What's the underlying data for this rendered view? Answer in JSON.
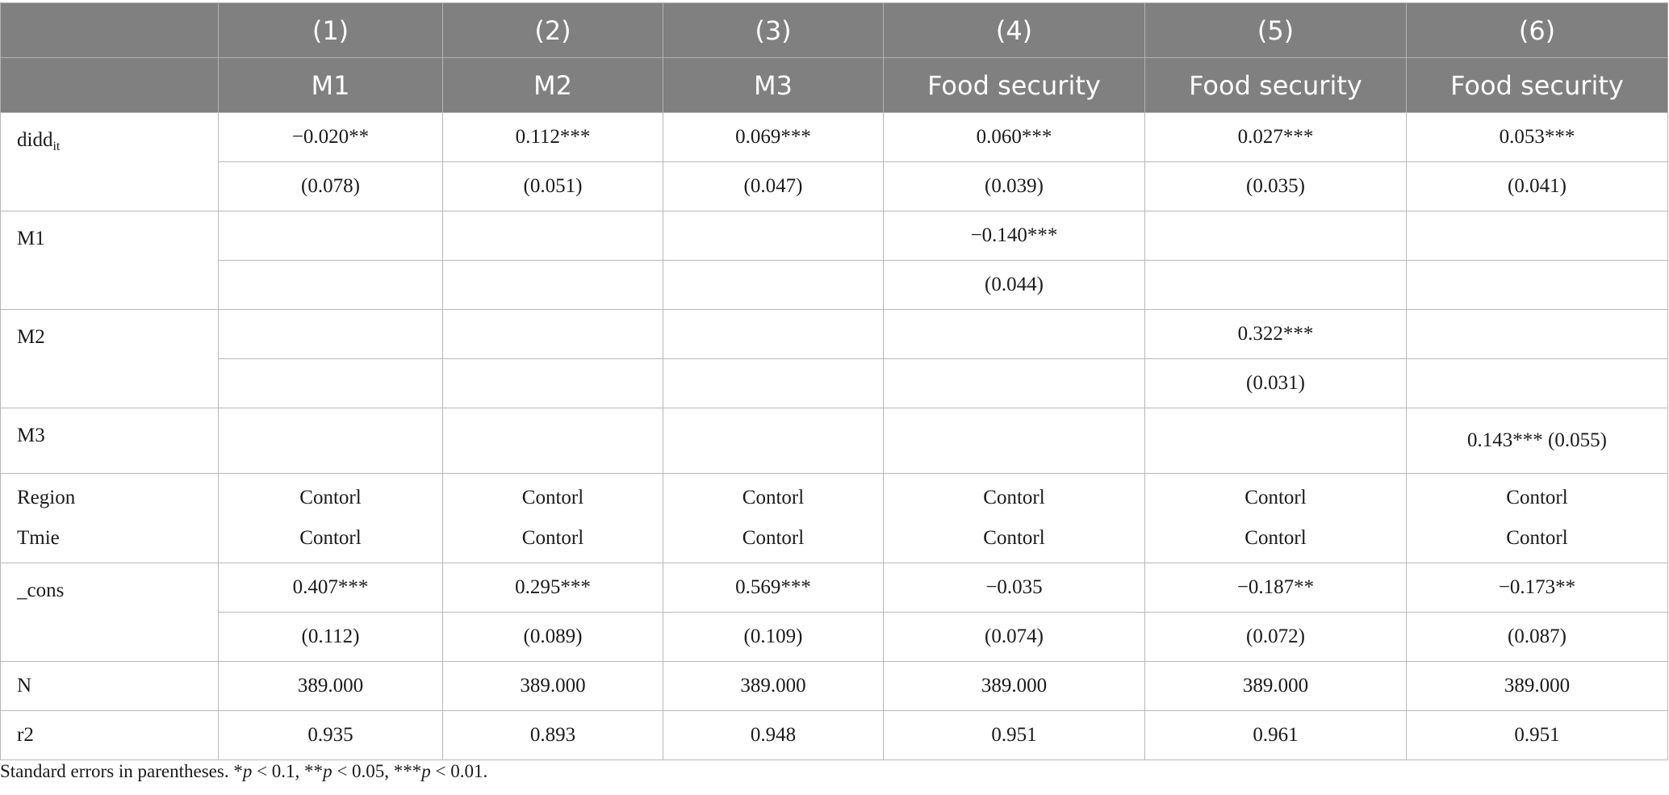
{
  "header": {
    "numbers": [
      "",
      "(1)",
      "(2)",
      "(3)",
      "(4)",
      "(5)",
      "(6)"
    ],
    "names": [
      "",
      "M1",
      "M2",
      "M3",
      "Food security",
      "Food security",
      "Food security"
    ]
  },
  "rows": {
    "didd": {
      "label": "didd",
      "label_sub": "it",
      "coef": [
        "−0.020**",
        "0.112***",
        "0.069***",
        "0.060***",
        "0.027***",
        "0.053***"
      ],
      "se": [
        "(0.078)",
        "(0.051)",
        "(0.047)",
        "(0.039)",
        "(0.035)",
        "(0.041)"
      ]
    },
    "m1": {
      "label": "M1",
      "coef": [
        "",
        "",
        "",
        "−0.140***",
        "",
        ""
      ],
      "se": [
        "",
        "",
        "",
        "(0.044)",
        "",
        ""
      ]
    },
    "m2": {
      "label": "M2",
      "coef": [
        "",
        "",
        "",
        "",
        "0.322***",
        ""
      ],
      "se": [
        "",
        "",
        "",
        "",
        "(0.031)",
        ""
      ]
    },
    "m3": {
      "label": "M3",
      "coef": [
        "",
        "",
        "",
        "",
        "",
        "0.143*** (0.055)"
      ]
    },
    "controls": {
      "label_region": "Region",
      "label_time": "Tmie",
      "region": [
        "Contorl",
        "Contorl",
        "Contorl",
        "Contorl",
        "Contorl",
        "Contorl"
      ],
      "time": [
        "Contorl",
        "Contorl",
        "Contorl",
        "Contorl",
        "Contorl",
        "Contorl"
      ]
    },
    "cons": {
      "label": "_cons",
      "coef": [
        "0.407***",
        "0.295***",
        "0.569***",
        "−0.035",
        "−0.187**",
        "−0.173**"
      ],
      "se": [
        "(0.112)",
        "(0.089)",
        "(0.109)",
        "(0.074)",
        "(0.072)",
        "(0.087)"
      ]
    },
    "n": {
      "label": "N",
      "vals": [
        "389.000",
        "389.000",
        "389.000",
        "389.000",
        "389.000",
        "389.000"
      ]
    },
    "r2": {
      "label": "r2",
      "vals": [
        "0.935",
        "0.893",
        "0.948",
        "0.951",
        "0.961",
        "0.951"
      ]
    }
  },
  "note": {
    "prefix": "Standard errors in parentheses. *",
    "p1": "p",
    "t1": " < 0.1, **",
    "p2": "p",
    "t2": " < 0.05, ***",
    "p3": "p",
    "t3": " < 0.01."
  }
}
